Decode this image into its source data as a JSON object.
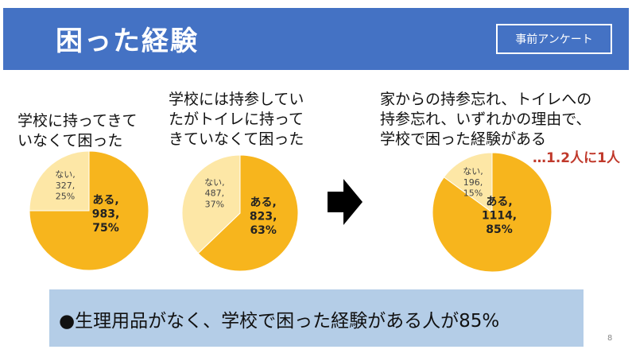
{
  "header": {
    "title": "困った経験",
    "tag": "事前アンケート"
  },
  "questions": [
    {
      "lines": [
        "学校に持ってきて",
        "いなくて困った"
      ]
    },
    {
      "lines": [
        "学校には持参してい",
        "たがトイレに持って",
        "きていなくて困った"
      ]
    },
    {
      "lines": [
        "家からの持参忘れ、トイレへの",
        "持参忘れ、いずれかの理由で、",
        "学校で困った経験がある"
      ]
    }
  ],
  "rate_note": "…1.2人に1人",
  "colors": {
    "yes": "#f7b51d",
    "no": "#fde7a6",
    "header": "#4472c4",
    "summary": "#b4cde7",
    "accent": "#c0392b"
  },
  "chart_data": [
    {
      "type": "pie",
      "slices": [
        {
          "label": "ある,",
          "count": "983,",
          "percent": "75%",
          "value": 983
        },
        {
          "label": "ない,",
          "count": "327,",
          "percent": "25%",
          "value": 327
        }
      ]
    },
    {
      "type": "pie",
      "slices": [
        {
          "label": "ある,",
          "count": "823,",
          "percent": "63%",
          "value": 823
        },
        {
          "label": "ない,",
          "count": "487,",
          "percent": "37%",
          "value": 487
        }
      ]
    },
    {
      "type": "pie",
      "slices": [
        {
          "label": "ある,",
          "count": "1114,",
          "percent": "85%",
          "value": 1114
        },
        {
          "label": "ない,",
          "count": "196,",
          "percent": "15%",
          "value": 196
        }
      ]
    }
  ],
  "summary": "●生理用品がなく、学校で困った経験がある人が85%",
  "page_number": "8"
}
